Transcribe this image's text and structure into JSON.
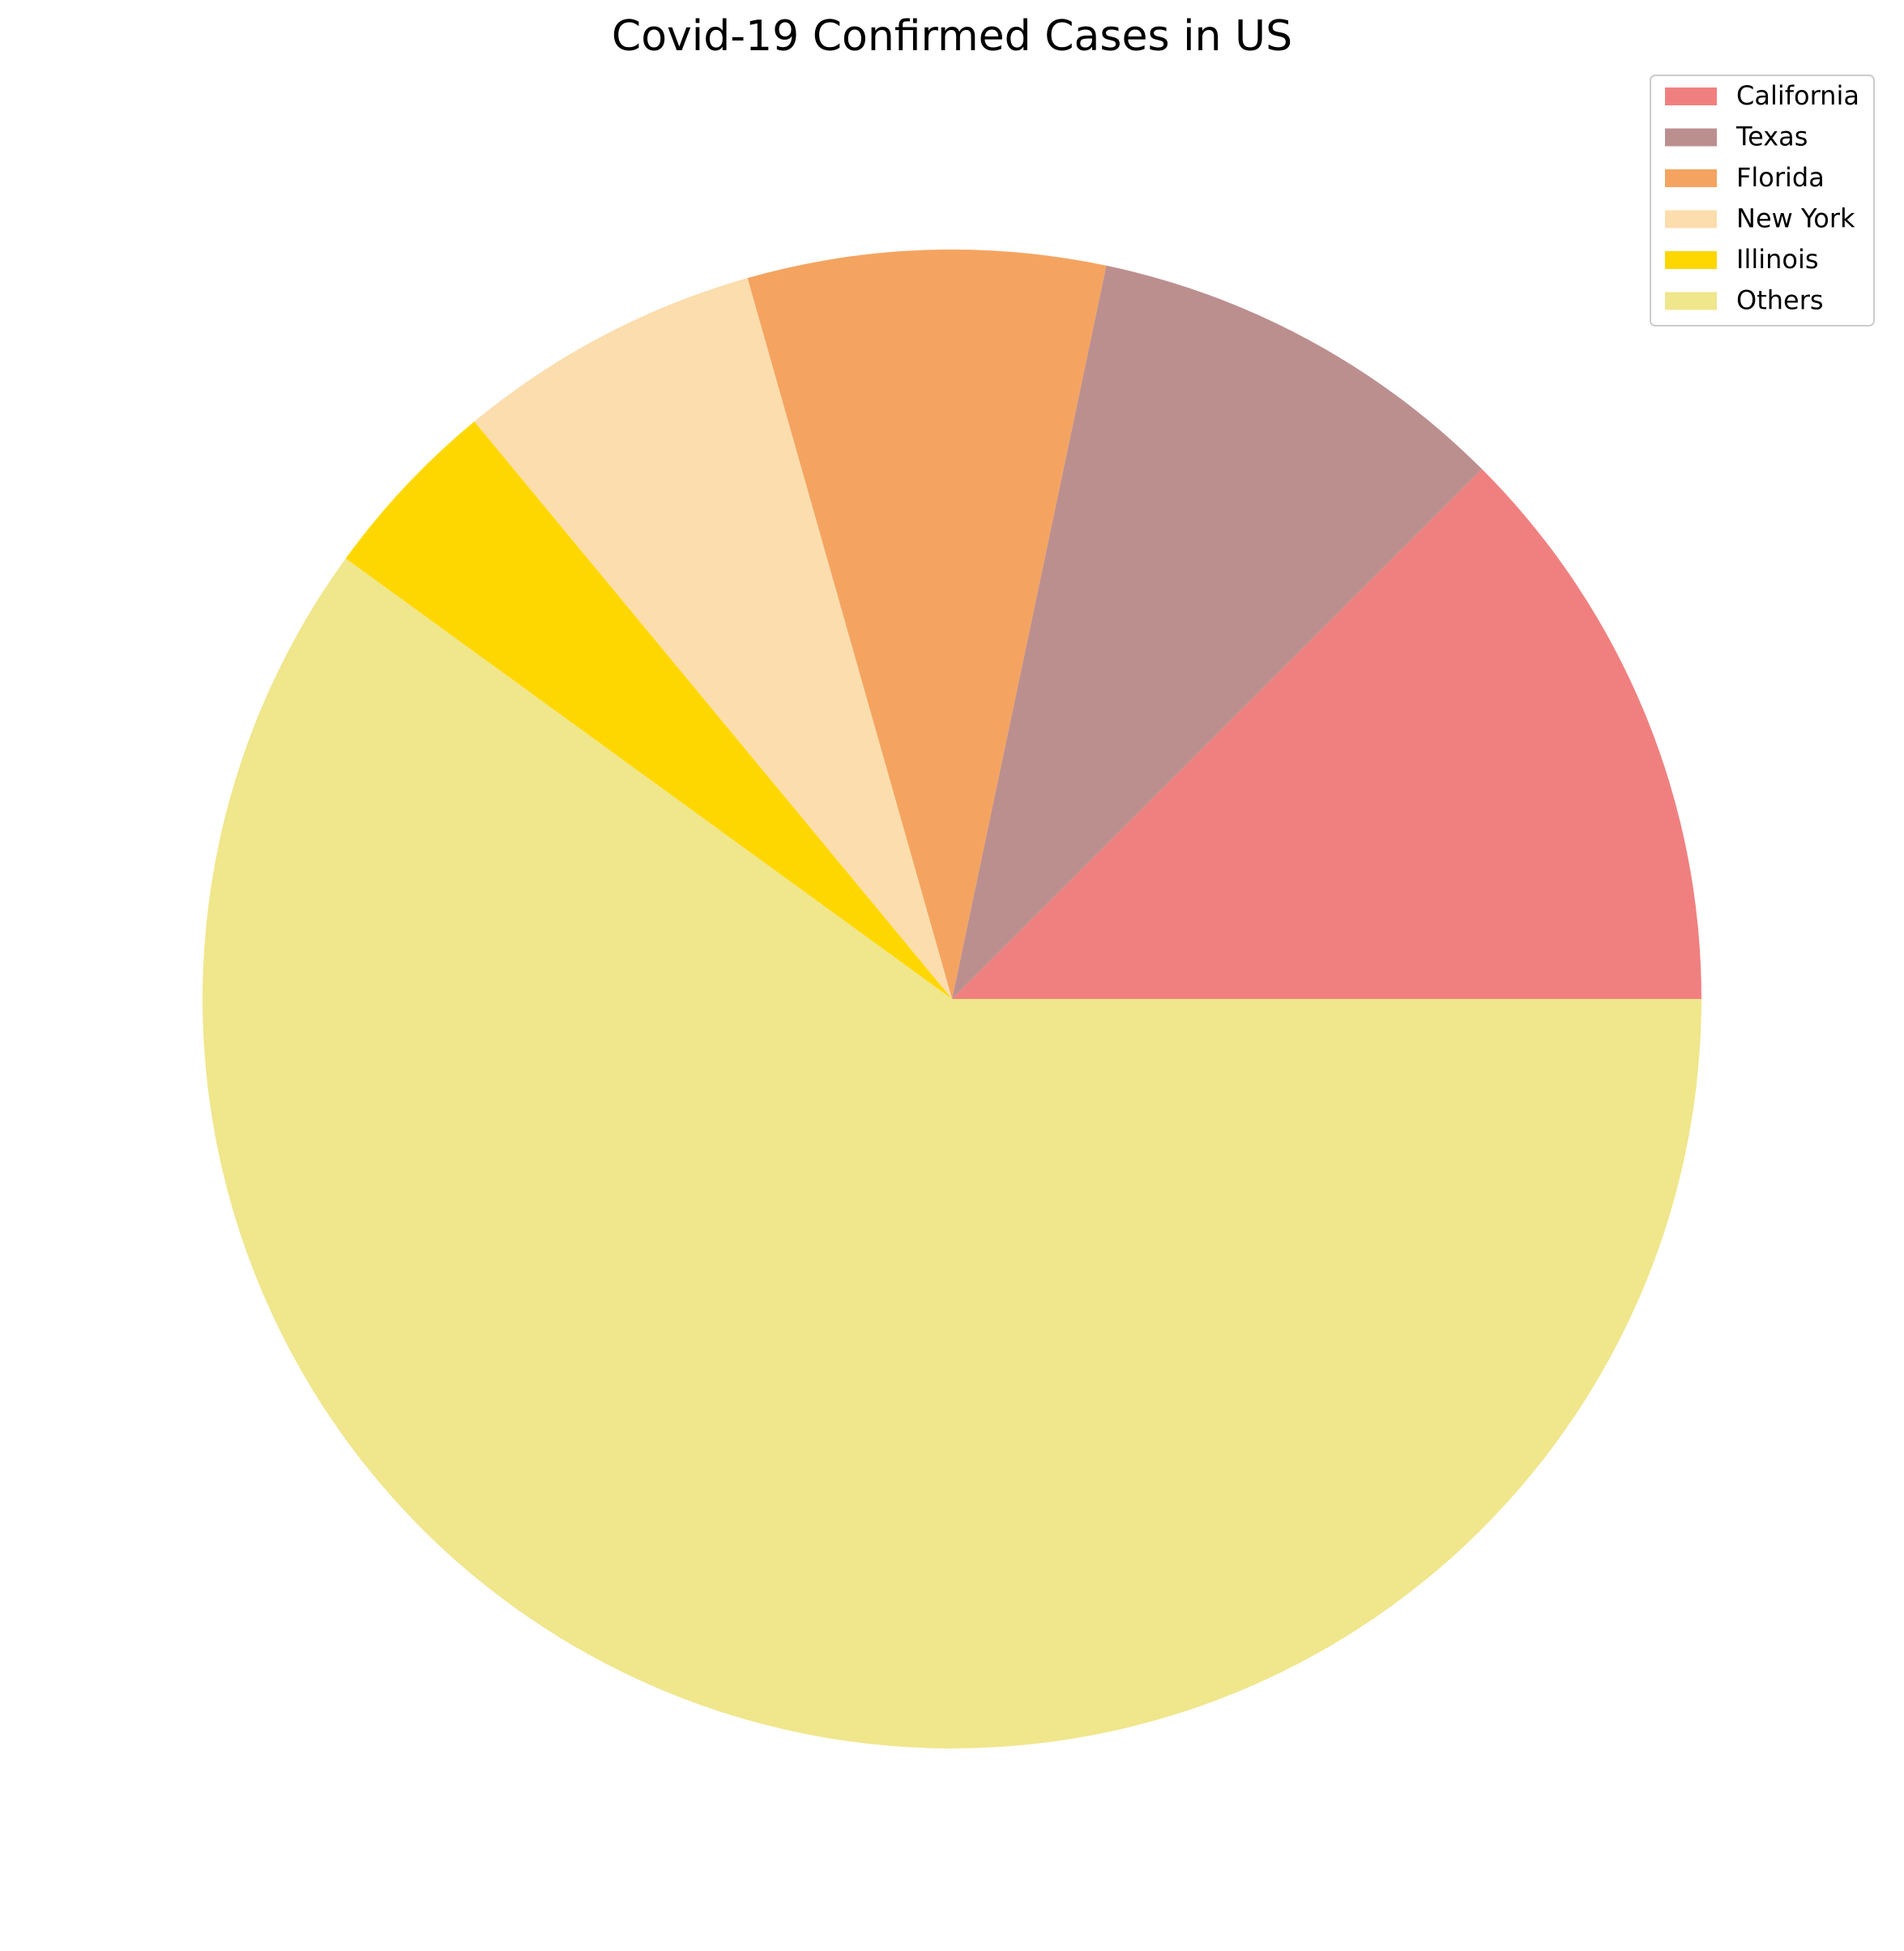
{
  "chart_data": {
    "type": "pie",
    "title": "Covid-19 Confirmed Cases in US",
    "start_angle_deg": 0,
    "direction": "counterclockwise",
    "legend_position": "top-right",
    "slices": [
      {
        "label": "California",
        "value": 12.5,
        "color": "#F08080"
      },
      {
        "label": "Texas",
        "value": 9.2,
        "color": "#BC8F8F"
      },
      {
        "label": "Florida",
        "value": 7.7,
        "color": "#F4A460"
      },
      {
        "label": "New York",
        "value": 6.6,
        "color": "#FCDDAD"
      },
      {
        "label": "Illinois",
        "value": 4.0,
        "color": "#FFD700"
      },
      {
        "label": "Others",
        "value": 60.0,
        "color": "#F0E68C"
      }
    ]
  }
}
